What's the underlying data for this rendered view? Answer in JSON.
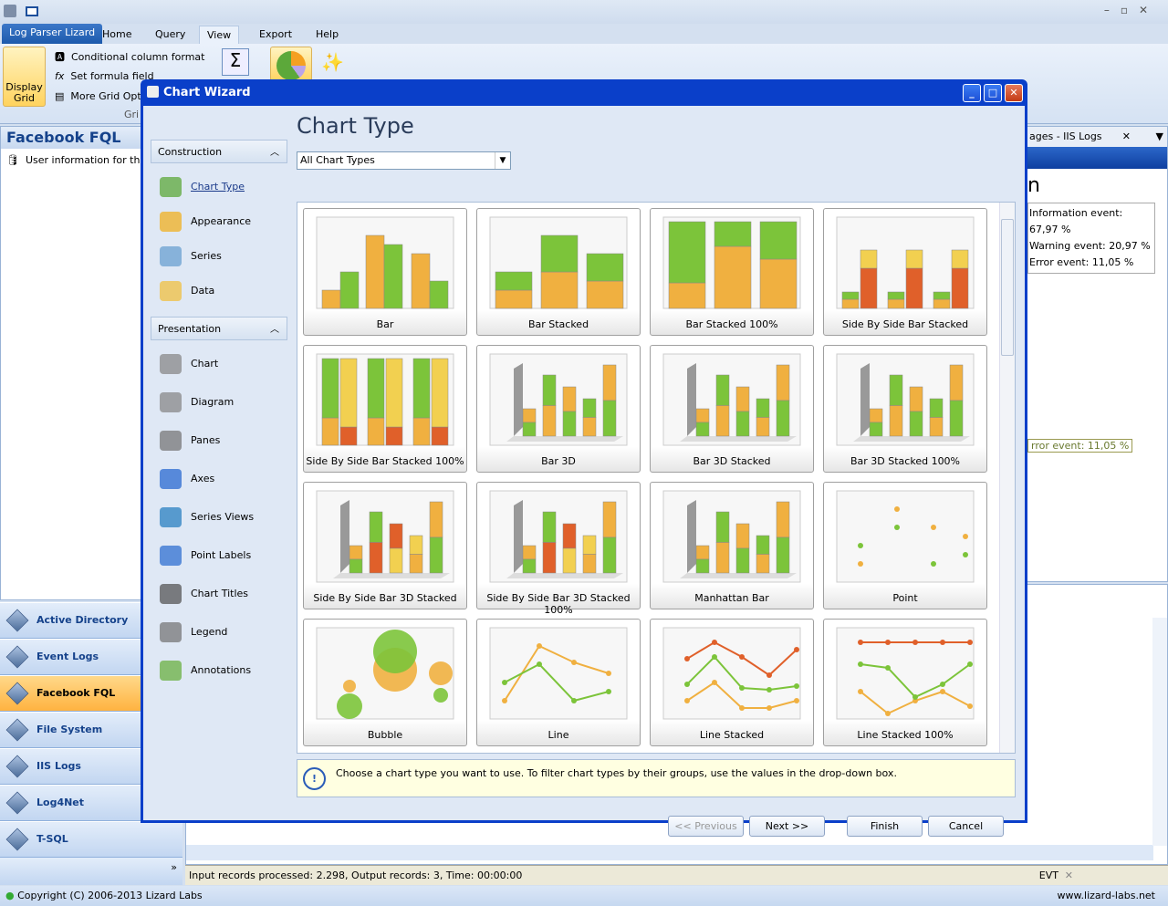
{
  "app": {
    "tabs": [
      "Log Parser Lizard",
      "Home",
      "Query",
      "View",
      "Export",
      "Help"
    ],
    "active_tab": "View",
    "ribbon": {
      "display_grid": "Display Grid",
      "conditional_format": "Conditional column format",
      "formula_field": "Set formula field",
      "more_grid": "More Grid Opti",
      "group_label": "Gri"
    },
    "left_panel": {
      "title": "Facebook FQL",
      "item": "User information for the a"
    },
    "nav": [
      "Active Directory",
      "Event Logs",
      "Facebook FQL",
      "File System",
      "IIS Logs",
      "Log4Net",
      "T-SQL"
    ],
    "nav_selected": "Facebook FQL",
    "right_panel": {
      "tab": "ages - IIS Logs",
      "heading": "n",
      "legend": [
        "Information event: 67,97 %",
        "Warning event: 20,97 %",
        "Error event: 11,05 %"
      ],
      "tooltip": "rror event: 11,05 %"
    },
    "status": "Input records processed: 2.298, Output records: 3, Time: 00:00:00",
    "evt": "EVT",
    "copyright": "Copyright (C) 2006-2013 Lizard Labs",
    "website": "www.lizard-labs.net"
  },
  "dialog": {
    "title": "Chart Wizard",
    "heading": "Chart Type",
    "groups": [
      {
        "label": "Construction",
        "items": [
          "Chart Type",
          "Appearance",
          "Series",
          "Data"
        ]
      },
      {
        "label": "Presentation",
        "items": [
          "Chart",
          "Diagram",
          "Panes",
          "Axes",
          "Series Views",
          "Point Labels",
          "Chart Titles",
          "Legend",
          "Annotations"
        ]
      }
    ],
    "selected_item": "Chart Type",
    "filter": "All Chart Types",
    "chart_types": [
      "Bar",
      "Bar Stacked",
      "Bar Stacked 100%",
      "Side By Side Bar Stacked",
      "Side By Side Bar Stacked 100%",
      "Bar 3D",
      "Bar 3D Stacked",
      "Bar 3D Stacked 100%",
      "Side By Side Bar 3D Stacked",
      "Side By Side Bar 3D Stacked 100%",
      "Manhattan Bar",
      "Point",
      "Bubble",
      "Line",
      "Line Stacked",
      "Line Stacked 100%"
    ],
    "hint": "Choose a chart type you want to use. To filter chart types by their groups, use the values in the drop-down box.",
    "buttons": {
      "previous": "<< Previous",
      "next": "Next >>",
      "finish": "Finish",
      "cancel": "Cancel"
    }
  }
}
